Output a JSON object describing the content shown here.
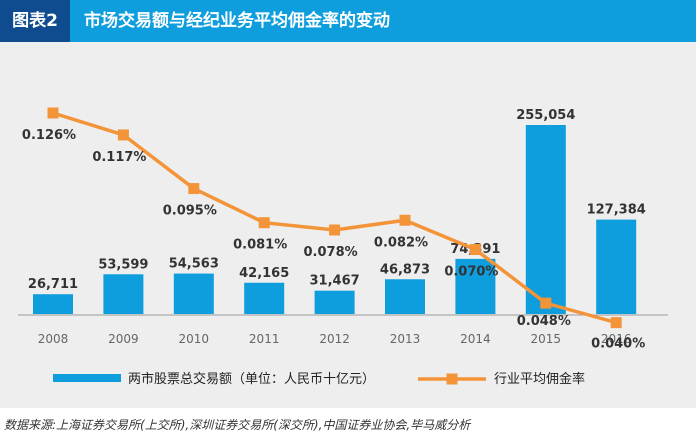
{
  "header": {
    "fig_label": "图表2",
    "title": "市场交易额与经纪业务平均佣金率的变动"
  },
  "source": "数据来源:上海证券交易所(上交所),深圳证券交易所(深交所),中国证券业协会,毕马威分析",
  "colors": {
    "bar": "#0e9ddd",
    "line": "#f39439",
    "header_bg": "#0e9ddd",
    "label_bg": "#0f4c8f"
  },
  "chart_data": {
    "type": "bar+line",
    "categories": [
      "2008",
      "2009",
      "2010",
      "2011",
      "2012",
      "2013",
      "2014",
      "2015",
      "2016"
    ],
    "series": [
      {
        "name": "两市股票总交易额（单位：人民币十亿元）",
        "type": "bar",
        "values": [
          26711,
          53599,
          54563,
          42165,
          31467,
          46873,
          74391,
          255054,
          127384
        ],
        "labels": [
          "26,711",
          "53,599",
          "54,563",
          "42,165",
          "31,467",
          "46,873",
          "74,391",
          "255,054",
          "127,384"
        ]
      },
      {
        "name": "行业平均佣金率",
        "type": "line",
        "values": [
          0.126,
          0.117,
          0.095,
          0.081,
          0.078,
          0.082,
          0.07,
          0.048,
          0.04
        ],
        "labels": [
          "0.126%",
          "0.117%",
          "0.095%",
          "0.081%",
          "0.078%",
          "0.082%",
          "0.070%",
          "0.048%",
          "0.040%"
        ]
      }
    ],
    "legend_position": "bottom",
    "grid": false
  }
}
